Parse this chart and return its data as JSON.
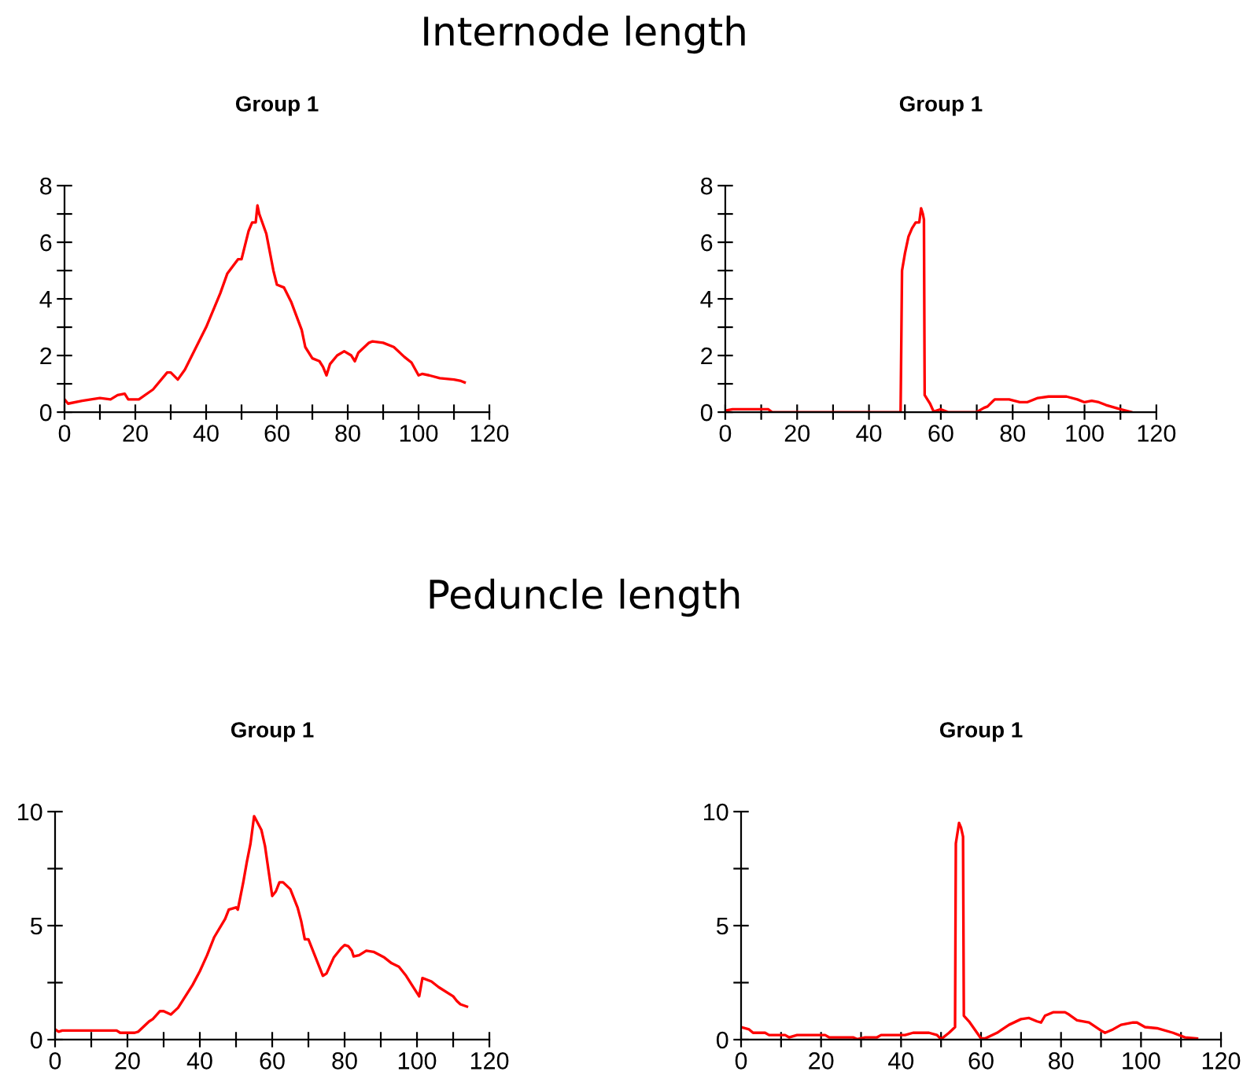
{
  "chart_data": [
    {
      "type": "line",
      "title": "Internode length",
      "subtitle": "Group 1",
      "xlim": [
        0,
        120
      ],
      "ylim": [
        0,
        8
      ],
      "xticks": [
        0,
        {
          "value": 10,
          "label": null
        },
        20,
        {
          "value": 30,
          "label": null
        },
        40,
        {
          "value": 50,
          "label": null
        },
        60,
        {
          "value": 70,
          "label": null
        },
        80,
        {
          "value": 90,
          "label": null
        },
        100,
        {
          "value": 110,
          "label": null
        },
        120
      ],
      "yticks": [
        0,
        {
          "value": 1,
          "label": null
        },
        2,
        {
          "value": 3,
          "label": null
        },
        4,
        {
          "value": 5,
          "label": null
        },
        6,
        {
          "value": 7,
          "label": null
        },
        8
      ],
      "x": [
        0,
        1,
        5,
        10,
        13,
        15,
        17,
        18,
        21,
        25,
        29,
        30,
        32,
        34,
        36,
        40,
        44,
        46,
        49,
        50,
        52,
        53,
        54,
        54.5,
        55,
        57,
        59,
        60,
        62,
        64,
        67,
        68,
        70,
        72,
        73,
        74,
        75,
        77,
        79,
        81,
        82,
        83,
        86,
        87,
        90,
        93,
        96,
        98,
        100,
        101,
        103,
        106,
        110,
        112,
        113
      ],
      "series": [
        {
          "color": "#ff0000",
          "values": [
            0.45,
            0.3,
            0.4,
            0.5,
            0.45,
            0.6,
            0.65,
            0.45,
            0.45,
            0.8,
            1.4,
            1.4,
            1.15,
            1.5,
            2.0,
            3.0,
            4.2,
            4.9,
            5.4,
            5.4,
            6.4,
            6.7,
            6.7,
            7.3,
            7.0,
            6.3,
            5.0,
            4.5,
            4.4,
            3.9,
            2.9,
            2.3,
            1.9,
            1.8,
            1.6,
            1.3,
            1.7,
            2.0,
            2.15,
            2.0,
            1.8,
            2.1,
            2.45,
            2.5,
            2.45,
            2.3,
            1.95,
            1.75,
            1.3,
            1.35,
            1.3,
            1.2,
            1.15,
            1.1,
            1.05
          ]
        }
      ]
    },
    {
      "type": "line",
      "title": "Group 1",
      "xlim": [
        0,
        120
      ],
      "ylim": [
        0,
        8
      ],
      "xticks": [
        0,
        {
          "value": 10,
          "label": null
        },
        20,
        {
          "value": 30,
          "label": null
        },
        40,
        {
          "value": 50,
          "label": null
        },
        60,
        {
          "value": 70,
          "label": null
        },
        80,
        {
          "value": 90,
          "label": null
        },
        100,
        {
          "value": 110,
          "label": null
        },
        120
      ],
      "yticks": [
        0,
        {
          "value": 1,
          "label": null
        },
        2,
        {
          "value": 3,
          "label": null
        },
        4,
        {
          "value": 5,
          "label": null
        },
        6,
        {
          "value": 7,
          "label": null
        },
        8
      ],
      "x": [
        0,
        2,
        12,
        13,
        48.8,
        49.2,
        50,
        51,
        52,
        53,
        54,
        54.5,
        55,
        55.3,
        55.5,
        57,
        58,
        60,
        62,
        70,
        72,
        73,
        75,
        79,
        82,
        84,
        87,
        90,
        95,
        98,
        100,
        102,
        104,
        106,
        110,
        113
      ],
      "series": [
        {
          "color": "#ff0000",
          "values": [
            0.05,
            0.1,
            0.1,
            0,
            0,
            5.0,
            5.6,
            6.2,
            6.5,
            6.7,
            6.7,
            7.2,
            7.0,
            6.8,
            0.6,
            0.3,
            0.02,
            0.1,
            0,
            0,
            0.15,
            0.2,
            0.45,
            0.45,
            0.35,
            0.35,
            0.5,
            0.55,
            0.55,
            0.45,
            0.35,
            0.4,
            0.35,
            0.25,
            0.1,
            0
          ]
        }
      ]
    },
    {
      "type": "line",
      "title": "Peduncle length",
      "subtitle": "Group 1",
      "xlim": [
        0,
        120
      ],
      "ylim": [
        0,
        10
      ],
      "xticks": [
        0,
        {
          "value": 10,
          "label": null
        },
        20,
        {
          "value": 30,
          "label": null
        },
        40,
        {
          "value": 50,
          "label": null
        },
        60,
        {
          "value": 70,
          "label": null
        },
        80,
        {
          "value": 90,
          "label": null
        },
        100,
        {
          "value": 110,
          "label": null
        },
        120
      ],
      "yticks": [
        0,
        {
          "value": 2.5,
          "label": null
        },
        5,
        {
          "value": 7.5,
          "label": null
        },
        10
      ],
      "x": [
        0,
        1,
        2,
        17,
        18,
        22,
        23,
        26,
        27,
        29,
        30,
        32,
        34,
        38,
        40,
        42,
        44,
        47,
        48,
        50,
        50.5,
        52,
        53,
        54,
        55,
        56,
        57,
        58,
        59,
        60,
        61,
        62,
        63,
        65,
        67,
        68,
        69,
        70,
        72,
        74,
        75,
        77,
        79,
        80,
        81,
        82,
        82.5,
        84,
        86,
        88,
        91,
        93,
        95,
        97,
        99,
        100.6,
        101.5,
        104,
        106,
        110,
        111,
        112,
        113.8
      ],
      "series": [
        {
          "color": "#ff0000",
          "values": [
            0.45,
            0.35,
            0.4,
            0.4,
            0.3,
            0.3,
            0.35,
            0.8,
            0.9,
            1.25,
            1.25,
            1.1,
            1.4,
            2.4,
            3.0,
            3.7,
            4.5,
            5.3,
            5.7,
            5.8,
            5.7,
            6.9,
            7.8,
            8.6,
            9.8,
            9.5,
            9.2,
            8.5,
            7.4,
            6.3,
            6.5,
            6.9,
            6.9,
            6.6,
            5.8,
            5.2,
            4.4,
            4.4,
            3.6,
            2.8,
            2.9,
            3.6,
            4.0,
            4.15,
            4.1,
            3.9,
            3.65,
            3.7,
            3.9,
            3.85,
            3.6,
            3.35,
            3.2,
            2.8,
            2.3,
            1.9,
            2.7,
            2.55,
            2.3,
            1.9,
            1.7,
            1.55,
            1.45
          ]
        }
      ]
    },
    {
      "type": "line",
      "title": "Group 1",
      "xlim": [
        0,
        120
      ],
      "ylim": [
        0,
        10
      ],
      "xticks": [
        0,
        {
          "value": 10,
          "label": null
        },
        20,
        {
          "value": 30,
          "label": null
        },
        40,
        {
          "value": 50,
          "label": null
        },
        60,
        {
          "value": 70,
          "label": null
        },
        80,
        {
          "value": 90,
          "label": null
        },
        100,
        {
          "value": 110,
          "label": null
        },
        120
      ],
      "yticks": [
        0,
        {
          "value": 2.5,
          "label": null
        },
        5,
        {
          "value": 7.5,
          "label": null
        },
        10
      ],
      "x": [
        0,
        2,
        3,
        6,
        7,
        11,
        12,
        14,
        21,
        22,
        28,
        29,
        31,
        34,
        35,
        41,
        43,
        47,
        49,
        50,
        52,
        53.5,
        53.7,
        54.5,
        55,
        55.5,
        55.7,
        57,
        59,
        60,
        61,
        64,
        67,
        70,
        72,
        74,
        75,
        76,
        78,
        81,
        82,
        84,
        87,
        90,
        91,
        93,
        95,
        98,
        99,
        101,
        104,
        108,
        111,
        114
      ],
      "series": [
        {
          "color": "#ff0000",
          "values": [
            0.55,
            0.45,
            0.3,
            0.3,
            0.2,
            0.2,
            0.1,
            0.2,
            0.2,
            0.1,
            0.1,
            0.02,
            0.1,
            0.1,
            0.2,
            0.2,
            0.3,
            0.3,
            0.2,
            0.02,
            0.3,
            0.55,
            8.6,
            9.5,
            9.3,
            8.9,
            1.05,
            0.8,
            0.3,
            0.05,
            0.05,
            0.3,
            0.65,
            0.9,
            0.95,
            0.8,
            0.75,
            1.05,
            1.2,
            1.2,
            1.1,
            0.85,
            0.75,
            0.4,
            0.3,
            0.45,
            0.65,
            0.75,
            0.75,
            0.55,
            0.5,
            0.3,
            0.1,
            0.05
          ]
        }
      ]
    }
  ]
}
